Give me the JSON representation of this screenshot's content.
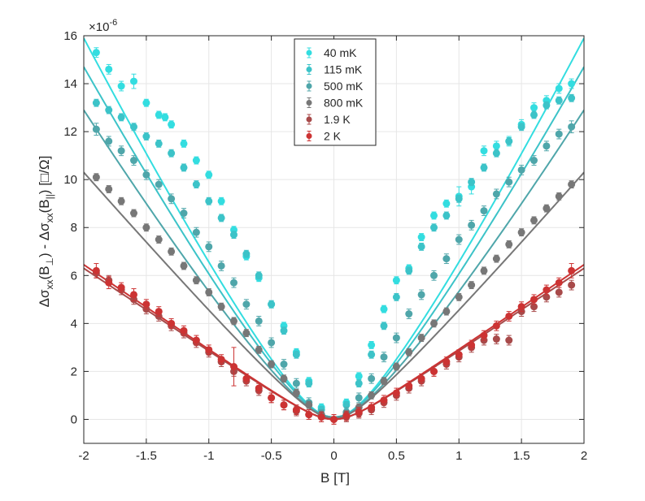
{
  "chart_data": {
    "type": "scatter",
    "title": "",
    "exponent_label": "×10",
    "exponent_value": "-6",
    "xlabel": "B [T]",
    "ylabel_parts": {
      "p1": "Δσ",
      "s1": "xx",
      "p2": "(B",
      "s2": "⊥",
      "p3": ") - Δσ",
      "s3": "xx",
      "p4": "(B",
      "s4": "||",
      "p5": ")  [□/Ω]"
    },
    "xlim": [
      -2,
      2
    ],
    "ylim": [
      -1,
      16
    ],
    "xticks": [
      -2,
      -1.5,
      -1,
      -0.5,
      0,
      0.5,
      1,
      1.5,
      2
    ],
    "yticks": [
      0,
      2,
      4,
      6,
      8,
      10,
      12,
      14,
      16
    ],
    "xtick_labels": [
      "-2",
      "-1.5",
      "-1",
      "-0.5",
      "0",
      "0.5",
      "1",
      "1.5",
      "2"
    ],
    "ytick_labels": [
      "0",
      "2",
      "4",
      "6",
      "8",
      "10",
      "12",
      "14",
      "16"
    ],
    "grid": true,
    "legend_position": "top-center",
    "series": [
      {
        "name": "40 mK",
        "color": "#33dde0",
        "amp": 15.9,
        "b0": 0.17,
        "p": 1.15,
        "offset": 0.1,
        "x": [
          -1.9,
          -1.8,
          -1.7,
          -1.6,
          -1.5,
          -1.4,
          -1.35,
          -1.3,
          -1.2,
          -1.1,
          -1.0,
          -0.9,
          -0.8,
          -0.7,
          -0.6,
          -0.5,
          -0.4,
          -0.3,
          -0.2,
          -0.1,
          0.1,
          0.2,
          0.3,
          0.4,
          0.5,
          0.6,
          0.7,
          0.8,
          0.9,
          1.0,
          1.1,
          1.2,
          1.3,
          1.4,
          1.5,
          1.6,
          1.7,
          1.8,
          1.9
        ],
        "y": [
          15.3,
          14.6,
          13.9,
          14.1,
          13.2,
          12.7,
          12.6,
          12.3,
          11.5,
          10.8,
          10.2,
          9.1,
          7.9,
          6.8,
          5.9,
          4.8,
          3.9,
          2.8,
          1.6,
          0.5,
          0.7,
          1.8,
          3.1,
          4.6,
          5.8,
          6.3,
          7.6,
          8.5,
          9.0,
          9.3,
          9.7,
          11.2,
          11.4,
          11.6,
          12.3,
          13.0,
          13.3,
          13.8,
          14.0
        ],
        "err": [
          0.2,
          0.2,
          0.2,
          0.3,
          0.15,
          0.15,
          0.15,
          0.15,
          0.15,
          0.15,
          0.15,
          0.15,
          0.15,
          0.15,
          0.15,
          0.15,
          0.15,
          0.15,
          0.15,
          0.15,
          0.15,
          0.15,
          0.15,
          0.15,
          0.15,
          0.15,
          0.15,
          0.15,
          0.15,
          0.4,
          0.3,
          0.2,
          0.2,
          0.2,
          0.2,
          0.2,
          0.2,
          0.2,
          0.2
        ]
      },
      {
        "name": "115 mK",
        "color": "#3cc3c8",
        "amp": 14.7,
        "b0": 0.17,
        "p": 1.15,
        "offset": 0.1,
        "x": [
          -1.9,
          -1.8,
          -1.7,
          -1.6,
          -1.5,
          -1.4,
          -1.3,
          -1.2,
          -1.1,
          -1.0,
          -0.9,
          -0.8,
          -0.7,
          -0.6,
          -0.5,
          -0.4,
          -0.3,
          -0.2,
          -0.1,
          0.1,
          0.2,
          0.3,
          0.4,
          0.5,
          0.6,
          0.7,
          0.8,
          0.9,
          1.0,
          1.1,
          1.2,
          1.3,
          1.4,
          1.5,
          1.6,
          1.7,
          1.8,
          1.9
        ],
        "y": [
          13.2,
          12.9,
          12.6,
          12.2,
          11.8,
          11.5,
          11.1,
          10.5,
          9.8,
          9.1,
          8.4,
          7.7,
          6.9,
          6.0,
          4.8,
          3.7,
          2.7,
          1.5,
          0.4,
          0.6,
          1.5,
          2.7,
          3.9,
          5.1,
          6.2,
          7.2,
          8.0,
          8.5,
          9.2,
          9.9,
          10.5,
          11.1,
          11.6,
          12.2,
          12.7,
          13.1,
          13.3,
          13.4
        ],
        "err": [
          0.15,
          0.15,
          0.15,
          0.15,
          0.15,
          0.15,
          0.15,
          0.15,
          0.15,
          0.15,
          0.15,
          0.15,
          0.15,
          0.15,
          0.15,
          0.15,
          0.15,
          0.15,
          0.15,
          0.15,
          0.15,
          0.15,
          0.15,
          0.15,
          0.15,
          0.15,
          0.15,
          0.15,
          0.15,
          0.15,
          0.15,
          0.15,
          0.15,
          0.15,
          0.15,
          0.15,
          0.15,
          0.15
        ]
      },
      {
        "name": "500 mK",
        "color": "#4fa6aa",
        "amp": 12.9,
        "b0": 0.17,
        "p": 1.15,
        "offset": 0.1,
        "x": [
          -1.9,
          -1.8,
          -1.7,
          -1.6,
          -1.5,
          -1.4,
          -1.3,
          -1.2,
          -1.1,
          -1.0,
          -0.9,
          -0.8,
          -0.7,
          -0.6,
          -0.5,
          -0.4,
          -0.3,
          -0.2,
          -0.1,
          0.1,
          0.2,
          0.3,
          0.4,
          0.5,
          0.6,
          0.7,
          0.8,
          0.9,
          1.0,
          1.1,
          1.2,
          1.3,
          1.4,
          1.5,
          1.6,
          1.7,
          1.8,
          1.9
        ],
        "y": [
          12.1,
          11.6,
          11.2,
          10.8,
          10.2,
          9.8,
          9.2,
          8.6,
          7.8,
          7.2,
          6.4,
          5.7,
          4.8,
          4.1,
          3.2,
          2.3,
          1.5,
          0.7,
          0.2,
          0.3,
          0.9,
          1.7,
          2.6,
          3.4,
          4.4,
          5.2,
          6.0,
          6.7,
          7.5,
          8.1,
          8.7,
          9.4,
          9.9,
          10.4,
          10.8,
          11.4,
          11.9,
          12.2
        ],
        "err": [
          0.25,
          0.2,
          0.2,
          0.2,
          0.2,
          0.2,
          0.2,
          0.2,
          0.2,
          0.2,
          0.2,
          0.2,
          0.2,
          0.2,
          0.2,
          0.2,
          0.2,
          0.2,
          0.2,
          0.2,
          0.2,
          0.2,
          0.2,
          0.2,
          0.2,
          0.2,
          0.2,
          0.2,
          0.2,
          0.2,
          0.2,
          0.2,
          0.2,
          0.2,
          0.2,
          0.2,
          0.2,
          0.25
        ]
      },
      {
        "name": "800 mK",
        "color": "#777777",
        "amp": 10.3,
        "b0": 0.18,
        "p": 1.05,
        "offset": 0.05,
        "x": [
          -1.9,
          -1.8,
          -1.7,
          -1.6,
          -1.5,
          -1.4,
          -1.3,
          -1.2,
          -1.1,
          -1.0,
          -0.9,
          -0.8,
          -0.7,
          -0.6,
          -0.5,
          -0.4,
          -0.3,
          -0.2,
          -0.1,
          0.1,
          0.2,
          0.3,
          0.4,
          0.5,
          0.6,
          0.7,
          0.8,
          0.9,
          1.0,
          1.1,
          1.2,
          1.3,
          1.4,
          1.5,
          1.6,
          1.7,
          1.8,
          1.9
        ],
        "y": [
          10.1,
          9.6,
          9.1,
          8.6,
          8.0,
          7.5,
          7.0,
          6.4,
          5.8,
          5.3,
          4.7,
          4.1,
          3.6,
          2.9,
          2.3,
          1.7,
          1.1,
          0.6,
          0.2,
          0.2,
          0.5,
          1.0,
          1.6,
          2.2,
          2.8,
          3.4,
          4.0,
          4.5,
          5.1,
          5.6,
          6.2,
          6.7,
          7.3,
          7.8,
          8.3,
          8.8,
          9.3,
          9.8
        ],
        "err": [
          0.15,
          0.15,
          0.15,
          0.15,
          0.15,
          0.15,
          0.15,
          0.15,
          0.15,
          0.15,
          0.15,
          0.15,
          0.15,
          0.15,
          0.15,
          0.15,
          0.15,
          0.15,
          0.15,
          0.15,
          0.15,
          0.15,
          0.15,
          0.15,
          0.15,
          0.15,
          0.15,
          0.15,
          0.15,
          0.15,
          0.15,
          0.15,
          0.15,
          0.15,
          0.15,
          0.15,
          0.15,
          0.15
        ]
      },
      {
        "name": "1.9 K",
        "color": "#a84a4a",
        "amp": 6.3,
        "b0": 0.2,
        "p": 1.0,
        "offset": 0.0,
        "x": [
          -1.9,
          -1.8,
          -1.7,
          -1.6,
          -1.5,
          -1.4,
          -1.3,
          -1.2,
          -1.1,
          -1.0,
          -0.9,
          -0.8,
          -0.7,
          -0.6,
          -0.5,
          -0.4,
          -0.3,
          -0.2,
          -0.1,
          0.0,
          0.1,
          0.2,
          0.3,
          0.4,
          0.5,
          0.6,
          0.7,
          0.8,
          0.9,
          1.0,
          1.1,
          1.2,
          1.3,
          1.4,
          1.5,
          1.6,
          1.7,
          1.8,
          1.9
        ],
        "y": [
          6.1,
          5.8,
          5.4,
          5.0,
          4.6,
          4.3,
          3.9,
          3.6,
          3.2,
          2.8,
          2.4,
          2.0,
          1.6,
          1.2,
          0.9,
          0.6,
          0.35,
          0.2,
          0.1,
          0.0,
          0.1,
          0.25,
          0.4,
          0.7,
          1.0,
          1.3,
          1.6,
          2.0,
          2.3,
          2.6,
          3.0,
          3.3,
          3.35,
          3.3,
          4.5,
          4.7,
          5.1,
          5.3,
          5.6
        ],
        "err": [
          0.2,
          0.2,
          0.2,
          0.2,
          0.2,
          0.2,
          0.2,
          0.2,
          0.2,
          0.2,
          0.2,
          0.2,
          0.2,
          0.2,
          0.2,
          0.2,
          0.2,
          0.2,
          0.2,
          0.2,
          0.2,
          0.2,
          0.2,
          0.2,
          0.2,
          0.2,
          0.2,
          0.2,
          0.2,
          0.2,
          0.2,
          0.2,
          0.2,
          0.2,
          0.2,
          0.2,
          0.2,
          0.2,
          0.2
        ]
      },
      {
        "name": "2 K",
        "color": "#cc3333",
        "amp": 6.45,
        "b0": 0.2,
        "p": 1.0,
        "offset": 0.0,
        "x": [
          -1.9,
          -1.8,
          -1.7,
          -1.6,
          -1.5,
          -1.4,
          -1.3,
          -1.2,
          -1.1,
          -1.0,
          -0.9,
          -0.8,
          -0.7,
          -0.6,
          -0.5,
          -0.4,
          -0.3,
          -0.2,
          -0.1,
          0.0,
          0.1,
          0.2,
          0.3,
          0.4,
          0.5,
          0.6,
          0.7,
          0.8,
          0.9,
          1.0,
          1.1,
          1.2,
          1.3,
          1.4,
          1.5,
          1.6,
          1.7,
          1.8,
          1.9
        ],
        "y": [
          6.2,
          5.7,
          5.5,
          5.2,
          4.8,
          4.5,
          4.0,
          3.7,
          3.3,
          2.9,
          2.5,
          2.2,
          1.7,
          1.3,
          0.9,
          0.6,
          0.4,
          0.2,
          0.1,
          0.0,
          0.15,
          0.3,
          0.5,
          0.8,
          1.1,
          1.4,
          1.7,
          2.0,
          2.4,
          2.7,
          3.1,
          3.5,
          3.9,
          4.3,
          4.7,
          5.0,
          5.4,
          5.7,
          6.2
        ],
        "err": [
          0.3,
          0.25,
          0.2,
          0.25,
          0.2,
          0.2,
          0.2,
          0.2,
          0.2,
          0.2,
          0.2,
          0.8,
          0.2,
          0.2,
          0.2,
          0.2,
          0.2,
          0.2,
          0.2,
          0.2,
          0.2,
          0.2,
          0.2,
          0.2,
          0.2,
          0.2,
          0.2,
          0.2,
          0.2,
          0.2,
          0.2,
          0.2,
          0.2,
          0.2,
          0.2,
          0.2,
          0.2,
          0.2,
          0.3
        ]
      }
    ]
  }
}
